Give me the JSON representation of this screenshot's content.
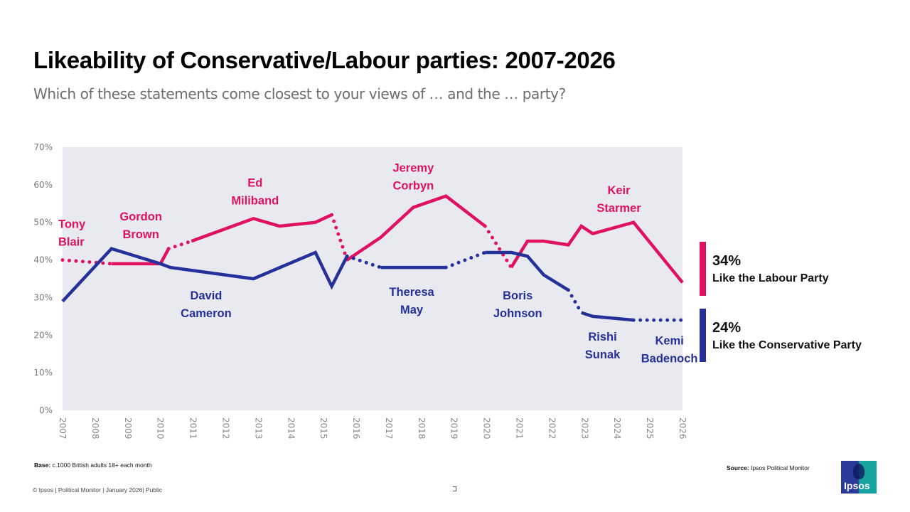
{
  "header": {
    "title": "Likeability of Conservative/Labour parties: 2007-2026",
    "subtitle": "Which of these statements come closest to your views of … and the … party?"
  },
  "legend": {
    "labour": {
      "value": "34%",
      "label": "Like the Labour Party",
      "color": "#e0115f"
    },
    "conservative": {
      "value": "24%",
      "label": "Like the Conservative Party",
      "color": "#25309a"
    }
  },
  "footer": {
    "base_label": "Base:",
    "base_text": "c.1000 British adults 18+ each month",
    "copyright": "© Ipsos | Political Monitor | January 2026| Public",
    "source_label": "Source:",
    "source_text": "Ipsos Political Monitor",
    "logo_text": "Ipsos"
  },
  "chart_data": {
    "type": "line",
    "title": "Likeability of Conservative/Labour parties: 2007-2026",
    "subtitle": "Which of these statements come closest to your views of … and the … party?",
    "xlabel": "",
    "ylabel": "",
    "ylim": [
      0,
      70
    ],
    "xlim": [
      2007,
      2026
    ],
    "yticks": [
      "0%",
      "10%",
      "20%",
      "30%",
      "40%",
      "50%",
      "60%",
      "70%"
    ],
    "xticks": [
      "2007",
      "2008",
      "2009",
      "2010",
      "2011",
      "2012",
      "2013",
      "2014",
      "2015",
      "2016",
      "2017",
      "2018",
      "2019",
      "2020",
      "2021",
      "2022",
      "2023",
      "2024",
      "2025",
      "2026"
    ],
    "grid": false,
    "plot_background": "#e8eaf0",
    "legend_position": "right",
    "series": [
      {
        "name": "Like the Labour Party",
        "color": "#e0115f",
        "segments": [
          {
            "style": "dotted",
            "leader": "Tony Blair",
            "points": [
              [
                2007.0,
                40
              ],
              [
                2008.5,
                39
              ]
            ]
          },
          {
            "style": "solid",
            "leader": "Gordon Brown",
            "points": [
              [
                2008.5,
                39
              ],
              [
                2010.0,
                39
              ],
              [
                2010.25,
                43
              ]
            ]
          },
          {
            "style": "dotted",
            "points": [
              [
                2010.25,
                43
              ],
              [
                2010.95,
                45
              ]
            ]
          },
          {
            "style": "solid",
            "leader": "Ed Miliband",
            "points": [
              [
                2010.95,
                45
              ],
              [
                2012.85,
                51
              ],
              [
                2013.65,
                49
              ],
              [
                2014.75,
                50
              ],
              [
                2015.25,
                52
              ]
            ]
          },
          {
            "style": "dotted",
            "points": [
              [
                2015.25,
                52
              ],
              [
                2015.72,
                40
              ]
            ]
          },
          {
            "style": "solid",
            "leader": "Jeremy Corbyn",
            "points": [
              [
                2015.72,
                40
              ],
              [
                2016.75,
                46
              ],
              [
                2017.75,
                54
              ],
              [
                2018.75,
                57
              ],
              [
                2019.95,
                49
              ]
            ]
          },
          {
            "style": "dotted",
            "points": [
              [
                2019.95,
                49
              ],
              [
                2020.75,
                38
              ]
            ]
          },
          {
            "style": "solid",
            "leader": "Keir Starmer",
            "points": [
              [
                2020.75,
                38
              ],
              [
                2021.25,
                45
              ],
              [
                2021.75,
                45
              ],
              [
                2022.5,
                44
              ],
              [
                2022.9,
                49
              ],
              [
                2023.25,
                47
              ],
              [
                2024.5,
                50
              ],
              [
                2026.0,
                34
              ]
            ]
          }
        ]
      },
      {
        "name": "Like the Conservative Party",
        "color": "#25309a",
        "segments": [
          {
            "style": "solid",
            "leader": "David Cameron",
            "points": [
              [
                2007.0,
                29
              ],
              [
                2008.5,
                43
              ],
              [
                2010.0,
                39
              ],
              [
                2010.3,
                38
              ],
              [
                2012.85,
                35
              ],
              [
                2014.75,
                42
              ],
              [
                2015.25,
                33
              ],
              [
                2015.72,
                41
              ]
            ]
          },
          {
            "style": "dotted",
            "points": [
              [
                2015.72,
                41
              ],
              [
                2016.75,
                38
              ]
            ]
          },
          {
            "style": "solid",
            "leader": "Theresa May",
            "points": [
              [
                2016.75,
                38
              ],
              [
                2018.75,
                38
              ]
            ]
          },
          {
            "style": "dotted",
            "points": [
              [
                2018.75,
                38
              ],
              [
                2019.95,
                42
              ]
            ]
          },
          {
            "style": "solid",
            "leader": "Boris Johnson",
            "points": [
              [
                2019.95,
                42
              ],
              [
                2020.75,
                42
              ],
              [
                2021.25,
                41
              ],
              [
                2021.75,
                36
              ],
              [
                2022.5,
                32
              ]
            ]
          },
          {
            "style": "dotted",
            "points": [
              [
                2022.5,
                32
              ],
              [
                2022.9,
                26
              ]
            ]
          },
          {
            "style": "solid",
            "leader": "Rishi Sunak",
            "points": [
              [
                2022.9,
                26
              ],
              [
                2023.25,
                25
              ],
              [
                2024.5,
                24
              ]
            ]
          },
          {
            "style": "dotted",
            "leader": "Kemi Badenoch",
            "points": [
              [
                2024.5,
                24
              ],
              [
                2026.0,
                24
              ]
            ]
          }
        ]
      }
    ],
    "annotations": [
      {
        "text": [
          "Tony",
          "Blair"
        ],
        "series": "Labour",
        "x": 2007.3,
        "y": 48.5
      },
      {
        "text": [
          "Gordon",
          "Brown"
        ],
        "series": "Labour",
        "x": 2009.4,
        "y": 50.5
      },
      {
        "text": [
          "Ed",
          "Miliband"
        ],
        "series": "Labour",
        "x": 2012.9,
        "y": 59.5
      },
      {
        "text": [
          "Jeremy",
          "Corbyn"
        ],
        "series": "Labour",
        "x": 2017.75,
        "y": 63.5
      },
      {
        "text": [
          "Keir",
          "Starmer"
        ],
        "series": "Labour",
        "x": 2024.05,
        "y": 57.5
      },
      {
        "text": [
          "David",
          "Cameron"
        ],
        "series": "Conservative",
        "x": 2011.4,
        "y": 29.5
      },
      {
        "text": [
          "Theresa",
          "May"
        ],
        "series": "Conservative",
        "x": 2017.7,
        "y": 30.5
      },
      {
        "text": [
          "Boris",
          "Johnson"
        ],
        "series": "Conservative",
        "x": 2020.95,
        "y": 29.5
      },
      {
        "text": [
          "Rishi",
          "Sunak"
        ],
        "series": "Conservative",
        "x": 2023.55,
        "y": 18.5
      },
      {
        "text": [
          "Kemi",
          "Badenoch"
        ],
        "series": "Conservative",
        "x": 2025.6,
        "y": 17.5
      }
    ],
    "latest_values": {
      "Labour": 34,
      "Conservative": 24
    }
  }
}
